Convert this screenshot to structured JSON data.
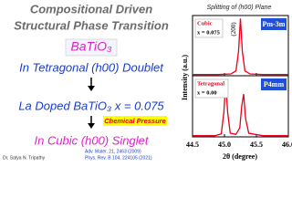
{
  "slide": {
    "title_line1": "Compositional Driven",
    "title_line2": "Structural Phase Transition",
    "compound": "BaTiO₃",
    "step1": "In Tetragonal (h00) Doublet",
    "step2": "La Doped BaTiO₃ x = 0.075",
    "badge": "Chemical Pressure",
    "step3": "In Cubic (h00) Singlet",
    "author": "Dr. Satya N. Tripathy",
    "references": [
      "Adv. Mater. 21, 2463 (2009)",
      "Phys. Rev. B 104, 224105 (2021)"
    ]
  },
  "chart_data": [
    {
      "type": "line",
      "title": "Splitting of (h00) Plane",
      "ylabel": "Intensity (a.u.)",
      "phase": "Cubic",
      "composition": "x = 0.075",
      "space_group": "Pm-3m",
      "reflection": "(200)",
      "color": "#e8001c",
      "x": [
        44.5,
        44.9,
        45.1,
        45.18,
        45.22,
        45.25,
        45.28,
        45.32,
        45.4,
        45.6,
        46.0
      ],
      "values": [
        2,
        2,
        3,
        8,
        40,
        95,
        40,
        8,
        3,
        2,
        2
      ],
      "xlim": [
        44.5,
        46.0
      ],
      "ylim": [
        0,
        100
      ]
    },
    {
      "type": "line",
      "xlabel": "2θ (degree)",
      "phase": "Tetragonal",
      "composition": "x = 0.00",
      "space_group": "P4mm",
      "color": "#e8001c",
      "x": [
        44.5,
        44.85,
        44.95,
        44.99,
        45.02,
        45.05,
        45.09,
        45.18,
        45.24,
        45.27,
        45.3,
        45.33,
        45.38,
        45.6,
        46.0
      ],
      "values": [
        2,
        2,
        5,
        40,
        90,
        40,
        6,
        4,
        15,
        50,
        70,
        30,
        6,
        2,
        2
      ],
      "xlim": [
        44.5,
        46.0
      ],
      "ylim": [
        0,
        100
      ],
      "xticks": [
        44.5,
        {
          "value": 45.0,
          "label": "45.0"
        },
        45.5,
        {
          "value": 46.0,
          "label": "46.0"
        }
      ]
    }
  ]
}
